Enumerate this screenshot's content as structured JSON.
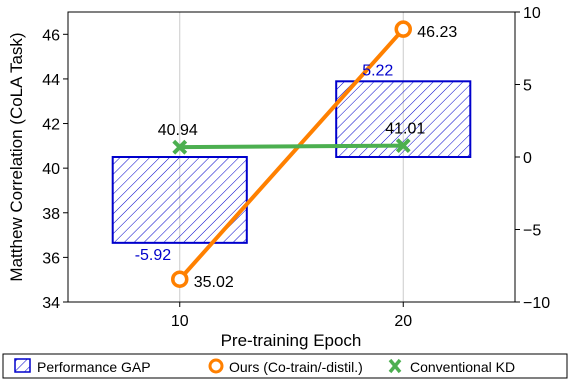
{
  "chart_data": {
    "type": "bar+line",
    "xlabel": "Pre-training Epoch",
    "ylabel": "Matthew Correlation (CoLA Task)",
    "categories": [
      10,
      20
    ],
    "x_tick_labels": [
      "10",
      "20"
    ],
    "xlim": [
      5,
      25
    ],
    "ylim": [
      34,
      47
    ],
    "y_ticks": [
      34,
      36,
      38,
      40,
      42,
      44,
      46
    ],
    "y_tick_labels": [
      "34",
      "36",
      "38",
      "40",
      "42",
      "44",
      "46"
    ],
    "y2lim": [
      -10,
      10
    ],
    "y2_ticks": [
      -10,
      -5,
      0,
      5,
      10
    ],
    "y2_tick_labels": [
      "−10",
      "−5",
      "0",
      "5",
      "10"
    ],
    "grid": "vertical lines at x ticks",
    "legend_position": "bottom, below plot",
    "series": [
      {
        "name": "Performance GAP",
        "type": "bar",
        "axis": "right",
        "values": [
          -5.92,
          5.22
        ],
        "labels": [
          "-5.92",
          "5.22"
        ],
        "color": "#0000cc",
        "hatch": "diagonal"
      },
      {
        "name": "Ours (Co-train/-distil.)",
        "type": "line",
        "axis": "left",
        "values": [
          35.02,
          46.23
        ],
        "labels": [
          "35.02",
          "46.23"
        ],
        "color": "#ff8000",
        "marker": "circle"
      },
      {
        "name": "Conventional KD",
        "type": "line",
        "axis": "left",
        "values": [
          40.94,
          41.01
        ],
        "labels": [
          "40.94",
          "41.01"
        ],
        "color": "#4caf50",
        "marker": "x"
      }
    ]
  }
}
